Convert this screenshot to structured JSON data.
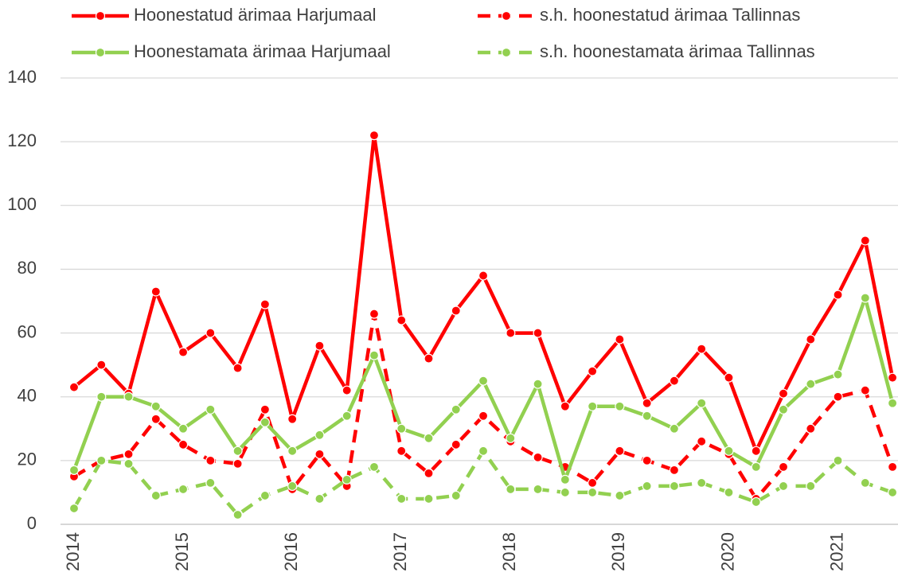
{
  "chart_data": {
    "type": "line",
    "categories": [
      "2014",
      null,
      null,
      null,
      "2015",
      null,
      null,
      null,
      "2016",
      null,
      null,
      null,
      "2017",
      null,
      null,
      null,
      "2018",
      null,
      null,
      null,
      "2019",
      null,
      null,
      null,
      "2020",
      null,
      null,
      null,
      "2021",
      null,
      null
    ],
    "series": [
      {
        "name": "Hoonestatud ärimaa Harjumaal",
        "color": "#ff0000",
        "dashed": false,
        "values": [
          43,
          50,
          41,
          73,
          54,
          60,
          49,
          69,
          33,
          56,
          42,
          122,
          64,
          52,
          67,
          78,
          60,
          60,
          37,
          48,
          58,
          38,
          45,
          55,
          46,
          23,
          41,
          58,
          72,
          89,
          46
        ]
      },
      {
        "name": "s.h. hoonestatud ärimaa Tallinnas",
        "color": "#ff0000",
        "dashed": true,
        "values": [
          15,
          20,
          22,
          33,
          25,
          20,
          19,
          36,
          11,
          22,
          12,
          66,
          23,
          16,
          25,
          34,
          26,
          21,
          18,
          13,
          23,
          20,
          17,
          26,
          22,
          8,
          18,
          30,
          40,
          42,
          18
        ]
      },
      {
        "name": "Hoonestamata ärimaa Harjumaal",
        "color": "#92d050",
        "dashed": false,
        "values": [
          17,
          40,
          40,
          37,
          30,
          36,
          23,
          32,
          23,
          28,
          34,
          53,
          30,
          27,
          36,
          45,
          27,
          44,
          14,
          37,
          37,
          34,
          30,
          38,
          23,
          18,
          36,
          44,
          47,
          71,
          38
        ]
      },
      {
        "name": "s.h. hoonestamata ärimaa Tallinnas",
        "color": "#92d050",
        "dashed": true,
        "values": [
          5,
          20,
          19,
          9,
          11,
          13,
          3,
          9,
          12,
          8,
          14,
          18,
          8,
          8,
          9,
          23,
          11,
          11,
          10,
          10,
          9,
          12,
          12,
          13,
          10,
          7,
          12,
          12,
          20,
          13,
          10
        ]
      }
    ],
    "ylim": [
      0,
      140
    ],
    "yticks": [
      0,
      20,
      40,
      60,
      80,
      100,
      120,
      140
    ],
    "grid": true,
    "legend": "top"
  }
}
